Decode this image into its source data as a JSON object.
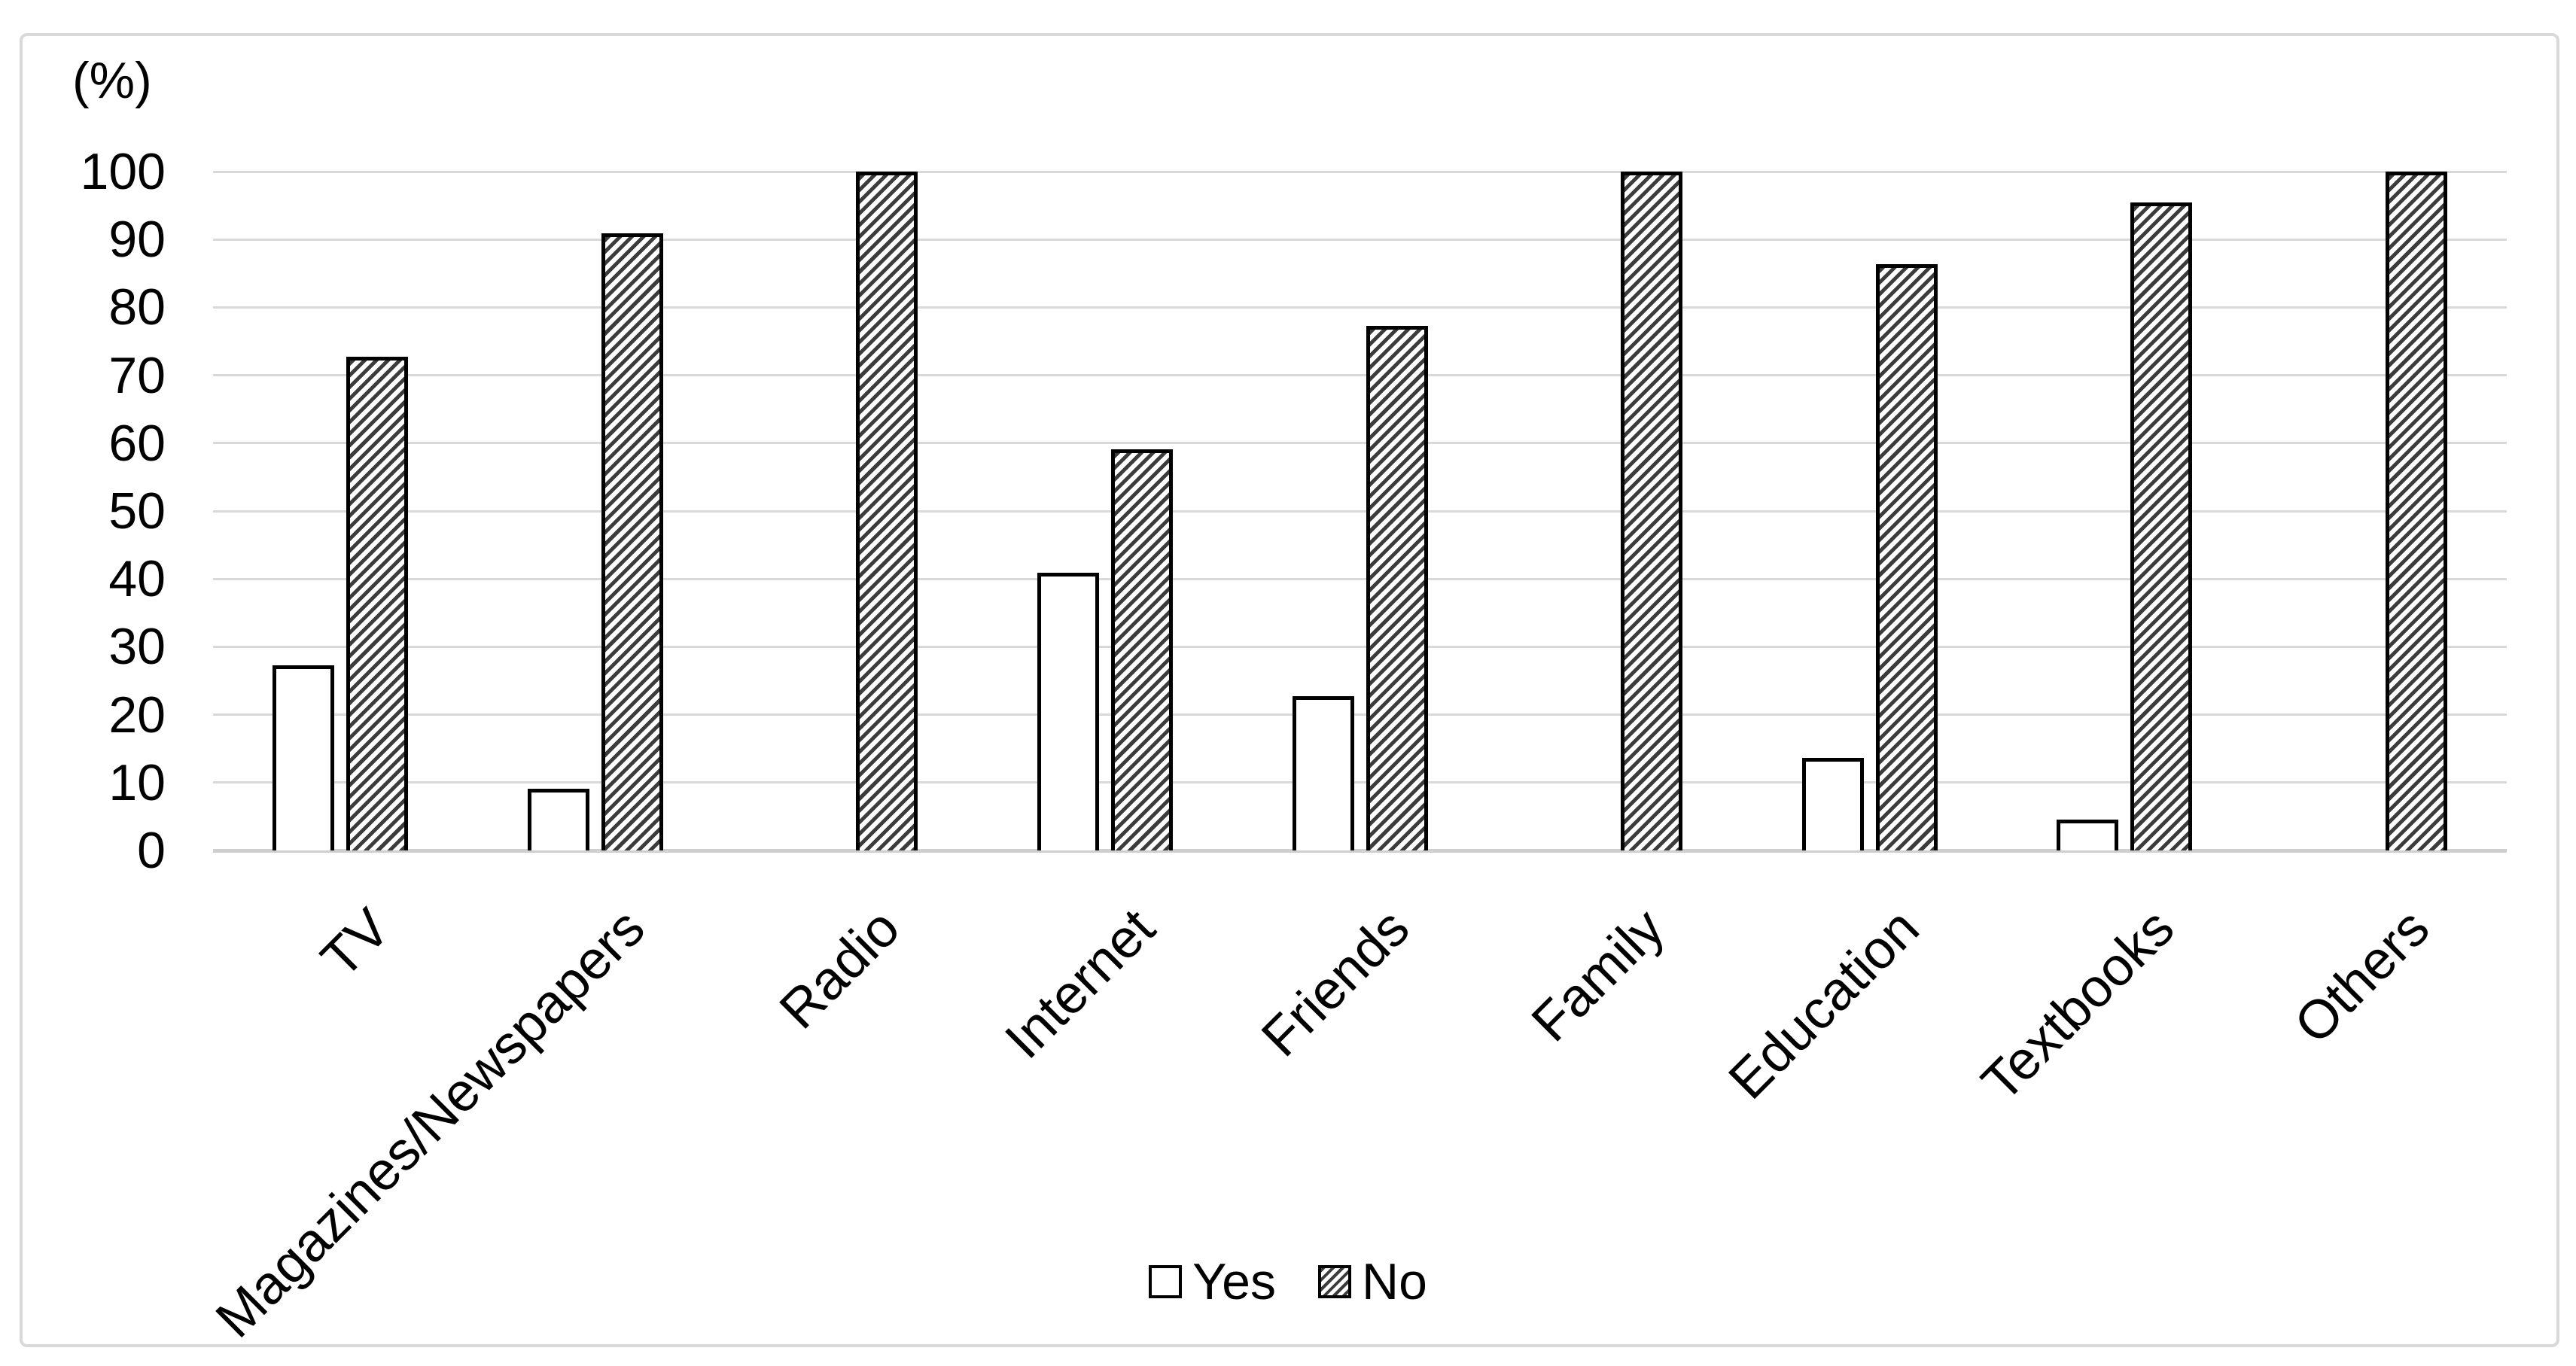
{
  "chart_data": {
    "type": "bar",
    "unit_label": "(%)",
    "categories": [
      "TV",
      "Magazines/Newspapers",
      "Radio",
      "Internet",
      "Friends",
      "Family",
      "Education",
      "Textbooks",
      "Others"
    ],
    "series": [
      {
        "name": "Yes",
        "fill": "white",
        "values": [
          27.3,
          9.1,
          0,
          40.9,
          22.7,
          0,
          13.6,
          4.5,
          0
        ]
      },
      {
        "name": "No",
        "fill": "hatch",
        "values": [
          72.7,
          90.9,
          100,
          59.1,
          77.3,
          100,
          86.4,
          95.5,
          100
        ]
      }
    ],
    "ylim": [
      0,
      100
    ],
    "yticks": [
      0,
      10,
      20,
      30,
      40,
      50,
      60,
      70,
      80,
      90,
      100
    ],
    "grid": true,
    "legend_position": "bottom",
    "bar_orientation": "vertical"
  },
  "colors": {
    "background": "#ffffff",
    "frame_border": "#d9d9d9",
    "gridline": "#d9d9d9",
    "axis_line": "#cfcfcf",
    "bar_border": "#000000",
    "hatch_stripe": "#3c3c3c",
    "text": "#000000"
  }
}
